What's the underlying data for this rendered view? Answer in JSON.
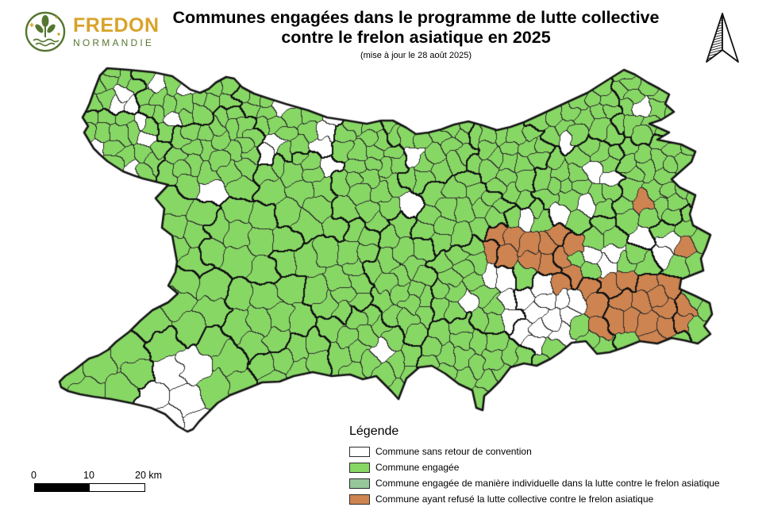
{
  "logo": {
    "brand": "FREDON",
    "region": "NORMANDIE"
  },
  "header": {
    "title_line1": "Communes engagées dans le programme de lutte collective",
    "title_line2": "contre le frelon asiatique en 2025",
    "subtitle": "(mise à jour le 28 août 2025)"
  },
  "legend": {
    "heading": "Légende",
    "items": [
      {
        "label": "Commune sans retour de convention",
        "color": "#FFFFFF"
      },
      {
        "label": "Commune engagée",
        "color": "#87D765"
      },
      {
        "label": "Commune engagée de manière individuelle dans la lutte contre le frelon asiatique",
        "color": "#95C79B"
      },
      {
        "label": "Commune ayant refusé la lutte collective contre le frelon asiatique",
        "color": "#CE8450"
      }
    ]
  },
  "scalebar": {
    "start_label": "0",
    "mid_label": "10",
    "end_label": "20 km"
  },
  "map": {
    "colors": {
      "engaged": "#87D765",
      "no_convention": "#FFFFFF",
      "individual": "#95C79B",
      "refused": "#CE8450",
      "commune_border": "#2B2B2B",
      "group_border": "#121212",
      "department_outline": "#141414"
    }
  }
}
